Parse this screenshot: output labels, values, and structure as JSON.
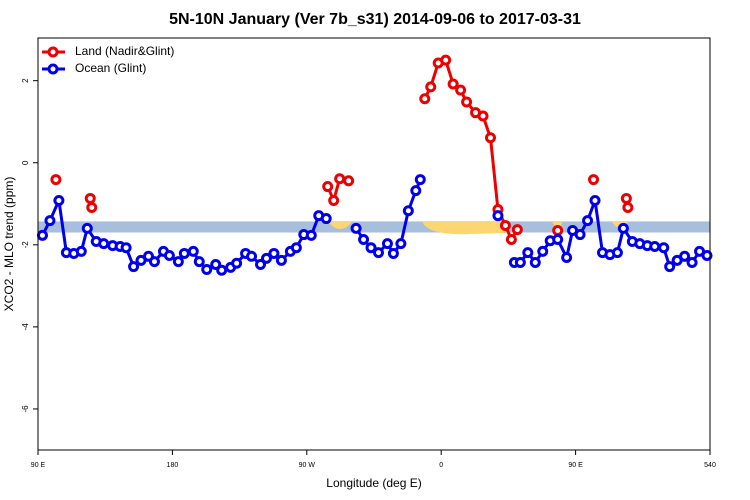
{
  "chart_data": {
    "type": "line",
    "title": "5N-10N January (Ver 7b_s31)   2014-09-06 to 2017-03-31",
    "x_label": "Longitude (deg E)",
    "y_label": "XCO2 - MLO trend (ppm)",
    "xlim": [
      90,
      540
    ],
    "xticks": [
      {
        "value": 90,
        "label": "90 E"
      },
      180,
      {
        "value": 270,
        "label": "90 W"
      },
      {
        "value": 360,
        "label": "0"
      },
      {
        "value": 450,
        "label": "90 E"
      },
      540
    ],
    "ylim": [
      -7,
      3.04
    ],
    "yticks": [
      2,
      0,
      -2,
      -4,
      -6
    ],
    "legend": "top-left",
    "band": {
      "ylim": [
        -1.7,
        -1.43
      ],
      "color": "#a7bfdc"
    },
    "series": [
      {
        "name": "Land (Nadir&Glint)",
        "color": "#ee0000",
        "x": [
          102,
          null,
          125,
          126,
          null,
          284,
          288,
          292,
          298,
          null,
          349,
          353,
          358,
          363,
          368,
          373,
          377,
          383,
          388,
          393,
          398,
          403,
          407,
          411,
          null,
          438,
          null,
          462,
          null,
          484,
          485
        ],
        "values": [
          -0.41,
          null,
          -0.87,
          -1.09,
          null,
          -0.58,
          -0.92,
          -0.39,
          -0.44,
          null,
          1.56,
          1.85,
          2.43,
          2.5,
          1.92,
          1.77,
          1.48,
          1.22,
          1.14,
          0.61,
          -1.14,
          -1.53,
          -1.87,
          -1.63,
          null,
          -1.65,
          null,
          -0.41,
          null,
          -0.87,
          -1.09
        ]
      },
      {
        "name": "Ocean (Glint)",
        "color": "#0000ee",
        "x": [
          93,
          98,
          104,
          109,
          114,
          119,
          123,
          129,
          134,
          140,
          145,
          149,
          154,
          159,
          164,
          168,
          174,
          178,
          184,
          188,
          194,
          198,
          203,
          209,
          213,
          219,
          223,
          229,
          233,
          239,
          243,
          248,
          253,
          259,
          263,
          268,
          273,
          278,
          283,
          null,
          303,
          308,
          313,
          318,
          324,
          328,
          333,
          338,
          343,
          346,
          null,
          398,
          null,
          409,
          413,
          418,
          423,
          428,
          433,
          438,
          444,
          448,
          453,
          458,
          463,
          468,
          473,
          478,
          482,
          488,
          493,
          498,
          503,
          509,
          513,
          518,
          523,
          528,
          533,
          538
        ],
        "values": [
          -1.77,
          -1.41,
          -0.92,
          -2.19,
          -2.21,
          -2.16,
          -1.6,
          -1.92,
          -1.97,
          -2.02,
          -2.04,
          -2.07,
          -2.53,
          -2.38,
          -2.28,
          -2.41,
          -2.16,
          -2.26,
          -2.41,
          -2.21,
          -2.16,
          -2.41,
          -2.6,
          -2.48,
          -2.62,
          -2.55,
          -2.45,
          -2.21,
          -2.28,
          -2.48,
          -2.33,
          -2.21,
          -2.38,
          -2.16,
          -2.07,
          -1.75,
          -1.77,
          -1.29,
          -1.36,
          null,
          -1.6,
          -1.87,
          -2.07,
          -2.19,
          -1.97,
          -2.21,
          -1.97,
          -1.17,
          -0.68,
          -0.41,
          null,
          -1.29,
          null,
          -2.43,
          -2.43,
          -2.19,
          -2.43,
          -2.16,
          -1.9,
          -1.87,
          -2.31,
          -1.65,
          -1.75,
          -1.41,
          -0.92,
          -2.19,
          -2.24,
          -2.19,
          -1.6,
          -1.92,
          -1.97,
          -2.02,
          -2.04,
          -2.07,
          -2.53,
          -2.38,
          -2.28,
          -2.43,
          -2.16,
          -2.26
        ]
      }
    ]
  }
}
